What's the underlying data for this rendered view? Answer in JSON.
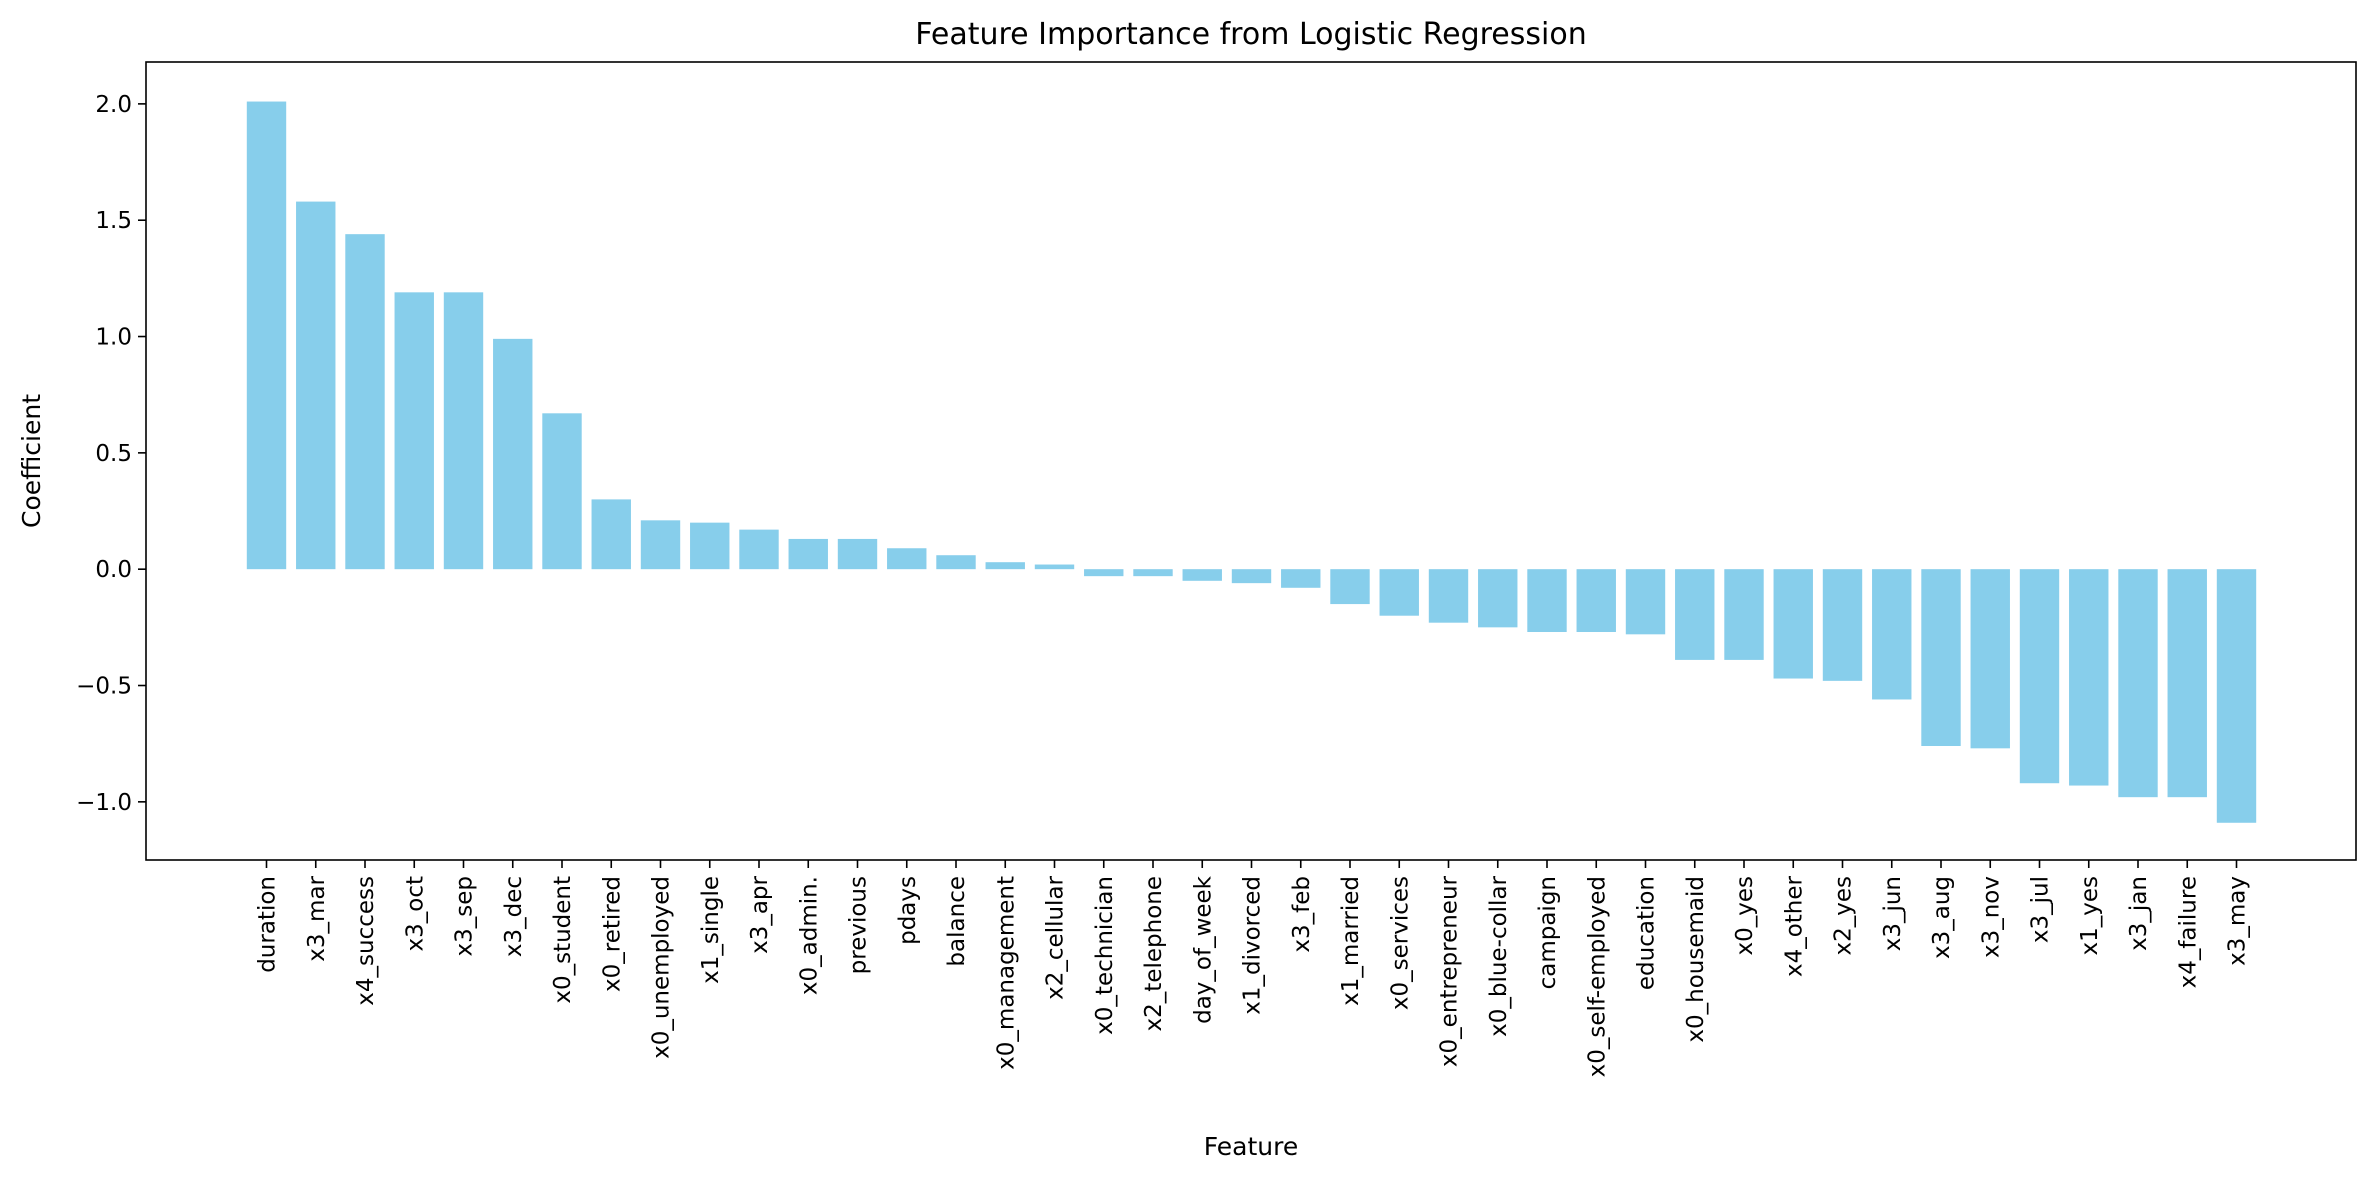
{
  "chart_data": {
    "type": "bar",
    "title": "Feature Importance from Logistic Regression",
    "xlabel": "Feature",
    "ylabel": "Coefficient",
    "ylim": [
      -1.25,
      2.18
    ],
    "yticks": [
      -1.0,
      -0.5,
      0.0,
      0.5,
      1.0,
      1.5,
      2.0
    ],
    "ytick_labels": [
      "−1.0",
      "−0.5",
      "0.0",
      "0.5",
      "1.0",
      "1.5",
      "2.0"
    ],
    "grid": false,
    "bar_color": "#87CEEB",
    "categories": [
      "duration",
      "x3_mar",
      "x4_success",
      "x3_oct",
      "x3_sep",
      "x3_dec",
      "x0_student",
      "x0_retired",
      "x0_unemployed",
      "x1_single",
      "x3_apr",
      "x0_admin.",
      "previous",
      "pdays",
      "balance",
      "x0_management",
      "x2_cellular",
      "x0_technician",
      "x2_telephone",
      "day_of_week",
      "x1_divorced",
      "x3_feb",
      "x1_married",
      "x0_services",
      "x0_entrepreneur",
      "x0_blue-collar",
      "campaign",
      "x0_self-employed",
      "education",
      "x0_housemaid",
      "x0_yes",
      "x4_other",
      "x2_yes",
      "x3_jun",
      "x3_aug",
      "x3_nov",
      "x3_jul",
      "x1_yes",
      "x3_jan",
      "x4_failure",
      "x3_may"
    ],
    "values": [
      2.01,
      1.58,
      1.44,
      1.19,
      1.19,
      0.99,
      0.67,
      0.3,
      0.21,
      0.2,
      0.17,
      0.13,
      0.13,
      0.09,
      0.06,
      0.03,
      0.02,
      -0.03,
      -0.03,
      -0.05,
      -0.06,
      -0.08,
      -0.15,
      -0.2,
      -0.23,
      -0.25,
      -0.27,
      -0.27,
      -0.28,
      -0.39,
      -0.39,
      -0.47,
      -0.48,
      -0.56,
      -0.76,
      -0.77,
      -0.92,
      -0.93,
      -0.98,
      -0.98,
      -1.09
    ]
  }
}
